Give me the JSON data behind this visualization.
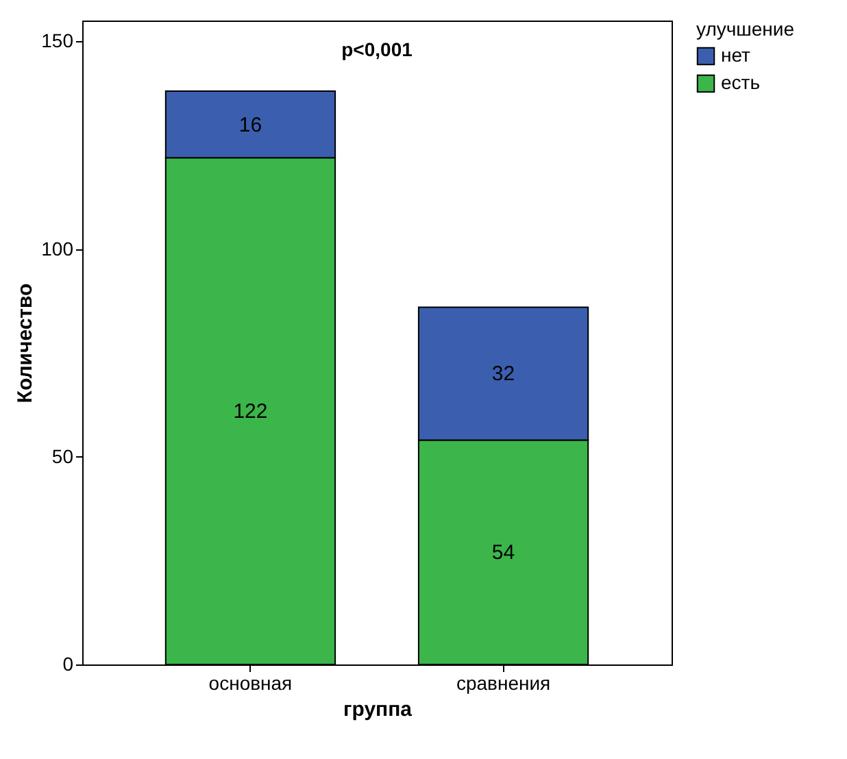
{
  "chart_data": {
    "type": "bar",
    "stacked": true,
    "xlabel": "группа",
    "ylabel": "Количество",
    "legend_title": "улучшение",
    "categories": [
      "основная",
      "сравнения"
    ],
    "series": [
      {
        "name": "есть",
        "color": "#3cb54a",
        "values": [
          122,
          54
        ]
      },
      {
        "name": "нет",
        "color": "#3b5fae",
        "values": [
          16,
          32
        ]
      }
    ],
    "ylim": [
      0,
      155
    ],
    "yticks": [
      0,
      50,
      100,
      150
    ],
    "data_labels": true,
    "legend": "right",
    "annotations": [
      "p<0,001"
    ]
  }
}
